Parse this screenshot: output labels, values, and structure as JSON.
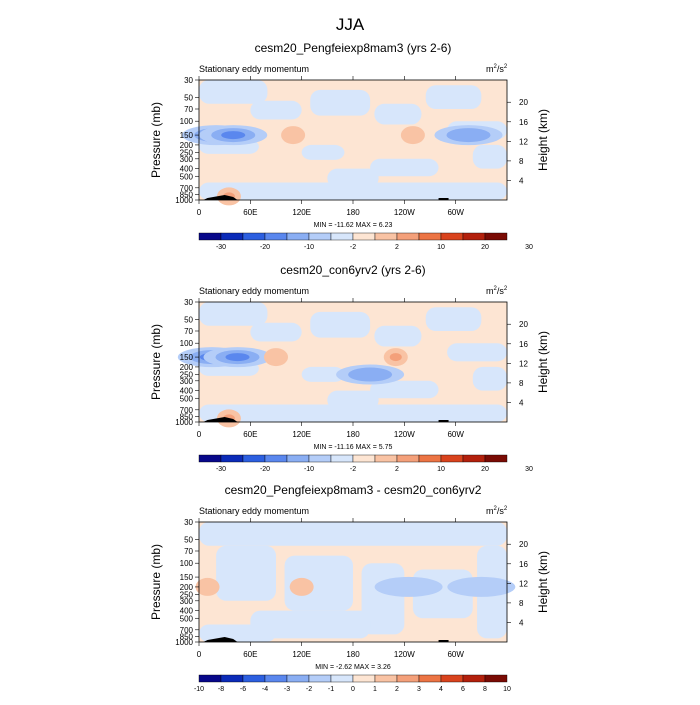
{
  "page_title": "JJA",
  "panel_subtitle": "Stationary eddy momentum",
  "units_base": "m",
  "units_exp1": "2",
  "units_mid": "/s",
  "units_exp2": "2",
  "ylabel_left": "Pressure (mb)",
  "ylabel_right": "Height (km)",
  "colors": {
    "full_scale": [
      "#08088a",
      "#0b2bb8",
      "#2c5fe0",
      "#5a87ee",
      "#8aaef3",
      "#b4cdf8",
      "#d7e6fb",
      "#fde5d3",
      "#f9c3a4",
      "#f4a07a",
      "#ec7444",
      "#d9431d",
      "#b3200c",
      "#7a0b04"
    ],
    "diff_scale": [
      "#08088a",
      "#0b2bb8",
      "#2c5fe0",
      "#5a87ee",
      "#8aaef3",
      "#b4cdf8",
      "#d7e6fb",
      "#fde5d3",
      "#f9c3a4",
      "#f4a07a",
      "#ec7444",
      "#d9431d",
      "#b3200c",
      "#7a0b04"
    ]
  },
  "chart_data": [
    {
      "type": "heatmap",
      "title": "cesm20_Pengfeiexp8mam3 (yrs 2-6)",
      "subtitle": "Stationary eddy momentum",
      "units": "m^2/s^2",
      "xlabel": "",
      "ylabel": "Pressure (mb)",
      "ylabel_right": "Height (km)",
      "xticks": [
        "0",
        "60E",
        "120E",
        "180",
        "120W",
        "60W"
      ],
      "yticks": [
        "30",
        "50",
        "70",
        "100",
        "150",
        "200",
        "250",
        "300",
        "400",
        "500",
        "700",
        "850",
        "1000"
      ],
      "yticks_right": [
        "20",
        "16",
        "12",
        "8",
        "4"
      ],
      "minmax_text": "MIN = -11.62  MAX =   6.23",
      "min": -11.62,
      "max": 6.23,
      "colorbar_labels": [
        "-30",
        "-20",
        "-10",
        "-2",
        "2",
        "10",
        "20",
        "30"
      ],
      "features": [
        {
          "lon": 20,
          "p": 150,
          "value": -9,
          "kind": "neg"
        },
        {
          "lon": 40,
          "p": 150,
          "value": -6,
          "kind": "neg"
        },
        {
          "lon": 110,
          "p": 150,
          "value": 3,
          "kind": "pos"
        },
        {
          "lon": 250,
          "p": 150,
          "value": 3,
          "kind": "pos"
        },
        {
          "lon": 315,
          "p": 150,
          "value": -3,
          "kind": "neg"
        },
        {
          "lon": 35,
          "p": 900,
          "value": 5,
          "kind": "pos"
        }
      ]
    },
    {
      "type": "heatmap",
      "title": "cesm20_con6yrv2 (yrs 2-6)",
      "subtitle": "Stationary eddy momentum",
      "units": "m^2/s^2",
      "xlabel": "",
      "ylabel": "Pressure (mb)",
      "ylabel_right": "Height (km)",
      "xticks": [
        "0",
        "60E",
        "120E",
        "180",
        "120W",
        "60W"
      ],
      "yticks": [
        "30",
        "50",
        "70",
        "100",
        "150",
        "200",
        "250",
        "300",
        "400",
        "500",
        "700",
        "850",
        "1000"
      ],
      "yticks_right": [
        "20",
        "16",
        "12",
        "8",
        "4"
      ],
      "minmax_text": "MIN = -11.16  MAX =   5.75",
      "min": -11.16,
      "max": 5.75,
      "colorbar_labels": [
        "-30",
        "-20",
        "-10",
        "-2",
        "2",
        "10",
        "20",
        "30"
      ],
      "features": [
        {
          "lon": 15,
          "p": 150,
          "value": -9,
          "kind": "neg"
        },
        {
          "lon": 45,
          "p": 150,
          "value": -7,
          "kind": "neg"
        },
        {
          "lon": 90,
          "p": 150,
          "value": 3,
          "kind": "pos"
        },
        {
          "lon": 230,
          "p": 150,
          "value": 4,
          "kind": "pos"
        },
        {
          "lon": 200,
          "p": 250,
          "value": -3,
          "kind": "neg"
        },
        {
          "lon": 35,
          "p": 900,
          "value": 4,
          "kind": "pos"
        }
      ]
    },
    {
      "type": "heatmap",
      "title": "cesm20_Pengfeiexp8mam3 - cesm20_con6yrv2",
      "subtitle": "Stationary eddy momentum",
      "units": "m^2/s^2",
      "xlabel": "",
      "ylabel": "Pressure (mb)",
      "ylabel_right": "Height (km)",
      "xticks": [
        "0",
        "60E",
        "120E",
        "180",
        "120W",
        "60W"
      ],
      "yticks": [
        "30",
        "50",
        "70",
        "100",
        "150",
        "200",
        "250",
        "300",
        "400",
        "500",
        "700",
        "850",
        "1000"
      ],
      "yticks_right": [
        "20",
        "16",
        "12",
        "8",
        "4"
      ],
      "minmax_text": "MIN =  -2.62  MAX =   3.26",
      "min": -2.62,
      "max": 3.26,
      "colorbar_labels": [
        "-10",
        "-8",
        "-6",
        "-4",
        "-3",
        "-2",
        "-1",
        "0",
        "1",
        "2",
        "3",
        "4",
        "6",
        "8",
        "10"
      ],
      "features": [
        {
          "lon": 10,
          "p": 200,
          "value": 1,
          "kind": "pos"
        },
        {
          "lon": 120,
          "p": 200,
          "value": 1,
          "kind": "pos"
        },
        {
          "lon": 245,
          "p": 200,
          "value": -2,
          "kind": "neg"
        },
        {
          "lon": 330,
          "p": 200,
          "value": -2,
          "kind": "neg"
        }
      ]
    }
  ]
}
